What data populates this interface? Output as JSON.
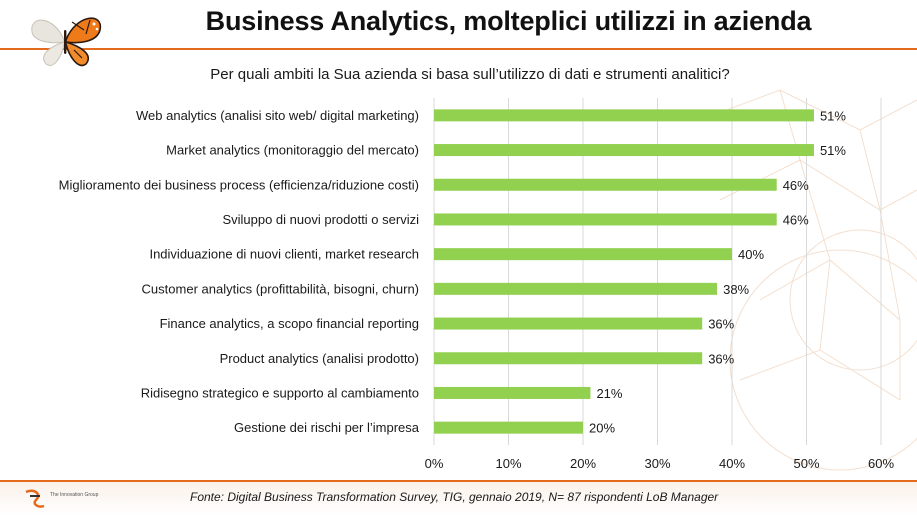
{
  "page": {
    "title": "Business Analytics, molteplici utilizzi in azienda",
    "question": "Per quali ambiti la Sua azienda si basa sull’utilizzo di dati e strumenti analitici?",
    "source": "Fonte: Digital Business Transformation Survey, TIG, gennaio 2019, N= 87 rispondenti LoB Manager",
    "footer_logo_text": "The Innovation Group",
    "colors": {
      "accent": "#e46a1c",
      "bar": "#92d050",
      "grid": "#d9d9d9"
    },
    "icons": {
      "logo": "butterfly-icon",
      "footer_logo": "innovation-group-logo-icon"
    }
  },
  "chart_data": {
    "type": "bar",
    "orientation": "horizontal",
    "title": "",
    "xlabel": "",
    "ylabel": "",
    "categories": [
      "Web analytics (analisi sito web/ digital marketing)",
      "Market analytics (monitoraggio del mercato)",
      "Miglioramento dei business process (efficienza/riduzione costi)",
      "Sviluppo di nuovi prodotti o servizi",
      "Individuazione di nuovi clienti, market research",
      "Customer analytics (profittabilità, bisogni, churn)",
      "Finance analytics, a scopo financial reporting",
      "Product analytics (analisi prodotto)",
      "Ridisegno strategico e supporto al cambiamento",
      "Gestione dei rischi per l’impresa"
    ],
    "values": [
      51,
      51,
      46,
      46,
      40,
      38,
      36,
      36,
      21,
      20
    ],
    "value_labels": [
      "51%",
      "51%",
      "46%",
      "46%",
      "40%",
      "38%",
      "36%",
      "36%",
      "21%",
      "20%"
    ],
    "xlim": [
      0,
      60
    ],
    "x_ticks": [
      0,
      10,
      20,
      30,
      40,
      50,
      60
    ],
    "x_tick_labels": [
      "0%",
      "10%",
      "20%",
      "30%",
      "40%",
      "50%",
      "60%"
    ],
    "grid": true,
    "legend": "none"
  }
}
